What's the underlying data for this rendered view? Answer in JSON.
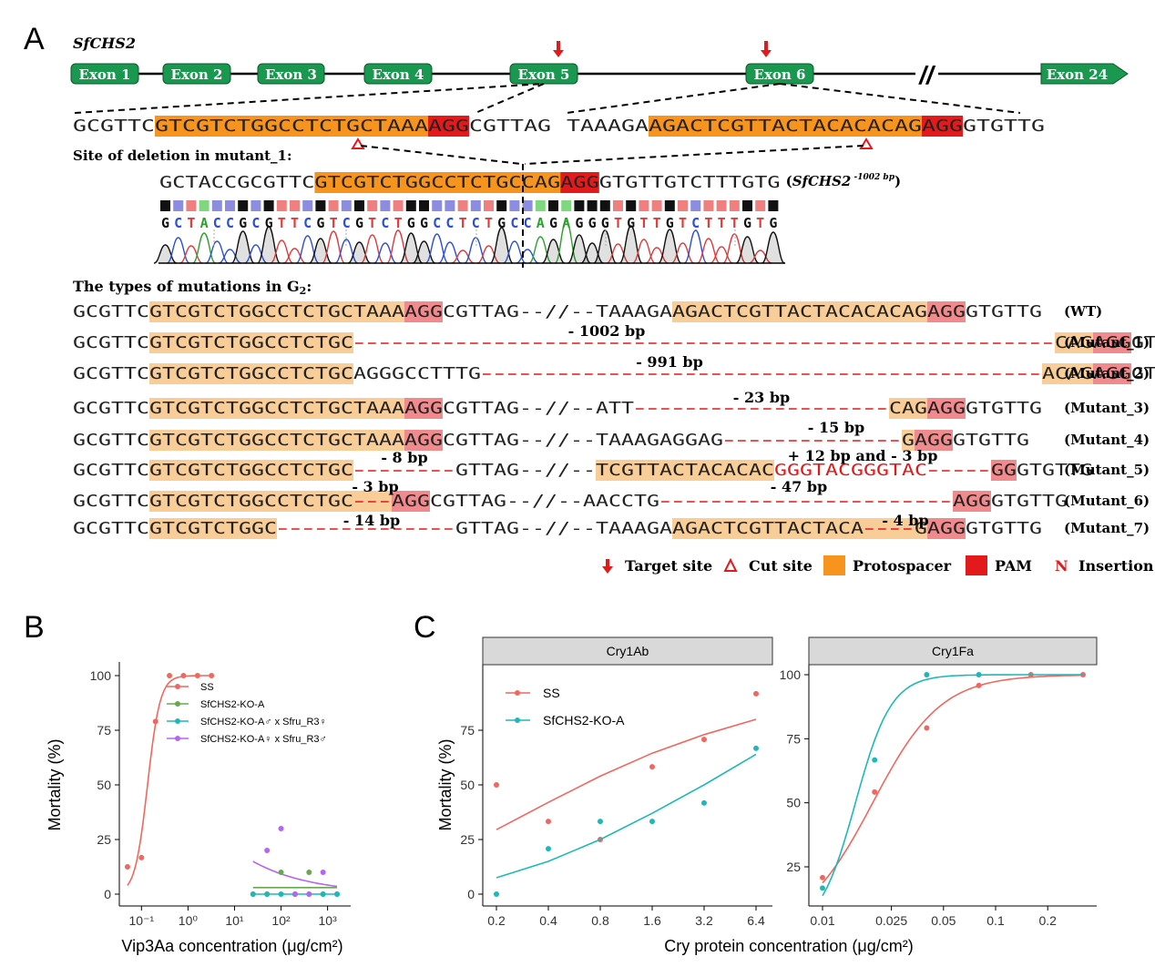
{
  "panel_labels": {
    "A": "A",
    "B": "B",
    "C": "C"
  },
  "gene": {
    "name": "SfCHS2",
    "exons": [
      "Exon 1",
      "Exon 2",
      "Exon 3",
      "Exon 4",
      "Exon 5",
      "Exon 6",
      "Exon 24"
    ],
    "break_mark": "//"
  },
  "colors": {
    "exon": "#1a9850",
    "protospacer": "#f7941d",
    "protospacer_light": "#f8cd98",
    "pam": "#e31a1c",
    "pam_light": "#f08a8c",
    "deletion": "#e31a1c",
    "ss": "#f0675f",
    "ko": "#1fb8b8",
    "ko_male": "#1fb8b8",
    "green": "#6aa84f",
    "purple": "#b565f0"
  },
  "wt_zoom": {
    "left": [
      "GCGTTC",
      "GTCGTCTGGCCTCTGCTAAA",
      "AGG",
      "CGTTAG"
    ],
    "right": [
      "TAAAGA",
      "AGACTCGTTACTACACACAG",
      "AGG",
      "GTGTTG"
    ]
  },
  "deletion_site": {
    "label": "Site of deletion in mutant_1:",
    "seq": [
      "GCTACCGCGTTC",
      "GTCGTCTGGCCTCTGC",
      "CAG",
      "AGG",
      "GTGTTGTCTTTGTG"
    ],
    "allele_prefix": "(",
    "allele": "SfCHS2",
    "allele_sup": "-1002 bp",
    "allele_suffix": ")",
    "chrom_bases": "GCTACCGCGTTCGTCGTCTGGCCTCTGCCAGAGGGTGTTGTCTTTGTG"
  },
  "mutations": {
    "title": "The types of mutations in G",
    "title_sub": "2",
    "title_end": ":",
    "rows": [
      {
        "label": "(WT)",
        "note": "",
        "segs": [
          [
            "n",
            "GCGTTC"
          ],
          [
            "p",
            "GTCGTCTGGCCTCTGCTAAA"
          ],
          [
            "m",
            "AGG"
          ],
          [
            "n",
            "CGTTAG--//--TAAAGA"
          ],
          [
            "p",
            "AGACTCGTTACTACACACAG"
          ],
          [
            "m",
            "AGG"
          ],
          [
            "n",
            "GTGTTG"
          ]
        ]
      },
      {
        "label": "(Mutant_1)",
        "note": "- 1002 bp",
        "segs": [
          [
            "n",
            "GCGTTC"
          ],
          [
            "p",
            "GTCGTCTGGCCTCTGC"
          ],
          [
            "d",
            "-------------------------------------------------------"
          ],
          [
            "p",
            "CAG"
          ],
          [
            "m",
            "AGG"
          ],
          [
            "n",
            "GTGTTG"
          ]
        ]
      },
      {
        "label": "(Mutant_2)",
        "note": "- 991 bp",
        "segs": [
          [
            "n",
            "GCGTTC"
          ],
          [
            "p",
            "GTCGTCTGGCCTCTGC"
          ],
          [
            "n",
            "AGGGCCTTTG"
          ],
          [
            "d",
            "--------------------------------------------"
          ],
          [
            "p",
            "ACAG"
          ],
          [
            "m",
            "AGG"
          ],
          [
            "n",
            "GTGTTG"
          ]
        ]
      },
      {
        "label": "(Mutant_3)",
        "note": "- 23 bp",
        "segs": [
          [
            "n",
            "GCGTTC"
          ],
          [
            "p",
            "GTCGTCTGGCCTCTGCTAAA"
          ],
          [
            "m",
            "AGG"
          ],
          [
            "n",
            "CGTTAG--//--ATT"
          ],
          [
            "d",
            "--------------------"
          ],
          [
            "p",
            "CAG"
          ],
          [
            "m",
            "AGG"
          ],
          [
            "n",
            "GTGTTG"
          ]
        ]
      },
      {
        "label": "(Mutant_4)",
        "note": "- 15 bp",
        "segs": [
          [
            "n",
            "GCGTTC"
          ],
          [
            "p",
            "GTCGTCTGGCCTCTGCTAAA"
          ],
          [
            "m",
            "AGG"
          ],
          [
            "n",
            "CGTTAG--//--TAAAGAGGAG"
          ],
          [
            "d",
            "--------------"
          ],
          [
            "p",
            "G"
          ],
          [
            "m",
            "AGG"
          ],
          [
            "n",
            "GTGTTG"
          ]
        ]
      },
      {
        "label": "(Mutant_5)",
        "note": "- 8 bp",
        "note2": "+ 12 bp and - 3 bp",
        "segs": [
          [
            "n",
            "GCGTTC"
          ],
          [
            "p",
            "GTCGTCTGGCCTCTGC"
          ],
          [
            "d",
            "--------"
          ],
          [
            "n",
            "GTTAG--//--"
          ],
          [
            "p",
            "TCGTTACTACACAC"
          ],
          [
            "i",
            "GGGTACGGGTAC"
          ],
          [
            "d",
            "-----"
          ],
          [
            "m",
            "GG"
          ],
          [
            "n",
            "GTGTTG"
          ]
        ]
      },
      {
        "label": "(Mutant_6)",
        "note": "- 3 bp",
        "note2": "- 47 bp",
        "segs": [
          [
            "n",
            "GCGTTC"
          ],
          [
            "p",
            "GTCGTCTGGCCTCTGC"
          ],
          [
            "dp",
            "---"
          ],
          [
            "m",
            "AGG"
          ],
          [
            "n",
            "CGTTAG--//--AACCTG"
          ],
          [
            "d",
            "-----------------------"
          ],
          [
            "m",
            "AGG"
          ],
          [
            "n",
            "GTGTTG"
          ]
        ]
      },
      {
        "label": "(Mutant_7)",
        "note": "- 14 bp",
        "note2": "- 4 bp",
        "segs": [
          [
            "n",
            "GCGTTC"
          ],
          [
            "p",
            "GTCGTCTGGC"
          ],
          [
            "d",
            "--------------"
          ],
          [
            "n",
            "GTTAG--//--TAAAGA"
          ],
          [
            "p",
            "AGACTCGTTACTACA"
          ],
          [
            "dp",
            "----"
          ],
          [
            "p",
            "G"
          ],
          [
            "m",
            "AGG"
          ],
          [
            "n",
            "GTGTTG"
          ]
        ]
      }
    ]
  },
  "legend_a": {
    "target": "Target site",
    "cut": "Cut site",
    "proto": "Protospacer",
    "pam": "PAM",
    "ins_glyph": "N",
    "insertion": "Insertion"
  },
  "chart_data": [
    {
      "type": "scatter",
      "panel": "B",
      "xlabel": "Vip3Aa concentration (μg/cm²)",
      "ylabel": "Mortality (%)",
      "x_scale": "log10",
      "xlim": [
        0.04,
        2000
      ],
      "ylim": [
        0,
        100
      ],
      "x_ticks": [
        "10⁻¹",
        "10⁰",
        "10¹",
        "10²",
        "10³"
      ],
      "y_ticks": [
        "0",
        "25",
        "50",
        "75",
        "100"
      ],
      "legend_position": "top-left",
      "series": [
        {
          "name": "SS",
          "color": "#f0675f",
          "x": [
            0.05,
            0.1,
            0.2,
            0.4,
            0.8,
            1.6,
            3.2
          ],
          "y": [
            12.5,
            16.7,
            79,
            100,
            100,
            100,
            100
          ],
          "fit": "sigmoid"
        },
        {
          "name": "SfCHS2-KO-A",
          "color": "#6aa84f",
          "x": [
            25,
            50,
            100,
            200,
            400,
            800,
            1600
          ],
          "y": [
            0,
            0,
            10,
            0,
            10,
            0,
            0
          ],
          "fit": "flat",
          "fit_y": 3
        },
        {
          "name": "SfCHS2-KO-A♂ x Sfru_R3♀",
          "color": "#1fb8b8",
          "x": [
            25,
            50,
            100,
            200,
            400,
            800,
            1600
          ],
          "y": [
            0,
            0,
            0,
            0,
            0,
            0,
            0
          ],
          "fit": "flat",
          "fit_y": 0
        },
        {
          "name": "SfCHS2-KO-A♀ x Sfru_R3♂",
          "color": "#b565f0",
          "x": [
            50,
            100,
            200,
            400,
            800
          ],
          "y": [
            20,
            30,
            0,
            0,
            10
          ],
          "fit": "decay"
        }
      ]
    },
    {
      "type": "scatter",
      "panel": "C",
      "facet": "Cry1Ab",
      "xlabel": "Cry protein concentration (μg/cm²)",
      "ylabel": "Mortality (%)",
      "x_scale": "log2",
      "x_ticks": [
        "0.2",
        "0.4",
        "0.8",
        "1.6",
        "3.2",
        "6.4"
      ],
      "y_ticks": [
        "0",
        "25",
        "50",
        "75"
      ],
      "legend_position": "top-left",
      "series": [
        {
          "name": "SS",
          "color": "#f0675f",
          "x": [
            0.2,
            0.4,
            0.8,
            1.6,
            3.2,
            6.4
          ],
          "y": [
            50,
            33.3,
            25,
            58.3,
            70.8,
            91.7
          ],
          "fit_y": [
            29.5,
            42,
            54,
            64.5,
            73,
            80
          ]
        },
        {
          "name": "SfCHS2-KO-A",
          "color": "#1fb8b8",
          "x": [
            0.2,
            0.4,
            0.8,
            1.6,
            3.2,
            6.4
          ],
          "y": [
            0,
            20.8,
            33.3,
            33.3,
            41.7,
            66.7
          ],
          "fit_y": [
            7.5,
            15,
            25,
            37,
            50,
            64
          ]
        }
      ]
    },
    {
      "type": "scatter",
      "panel": "C",
      "facet": "Cry1Fa",
      "x_scale": "log10",
      "x_ticks": [
        "0.01",
        "0.025",
        "0.05",
        "0.1",
        "0.2"
      ],
      "y_ticks": [
        "25",
        "50",
        "75",
        "100"
      ],
      "series": [
        {
          "name": "SS",
          "color": "#f0675f",
          "x": [
            0.01,
            0.02,
            0.04,
            0.08,
            0.16,
            0.32
          ],
          "y": [
            20.8,
            54.2,
            79.2,
            95.8,
            100,
            100
          ]
        },
        {
          "name": "SfCHS2-KO-A",
          "color": "#1fb8b8",
          "x": [
            0.01,
            0.02,
            0.04,
            0.08
          ],
          "y": [
            16.7,
            66.7,
            100,
            100
          ]
        }
      ]
    }
  ]
}
